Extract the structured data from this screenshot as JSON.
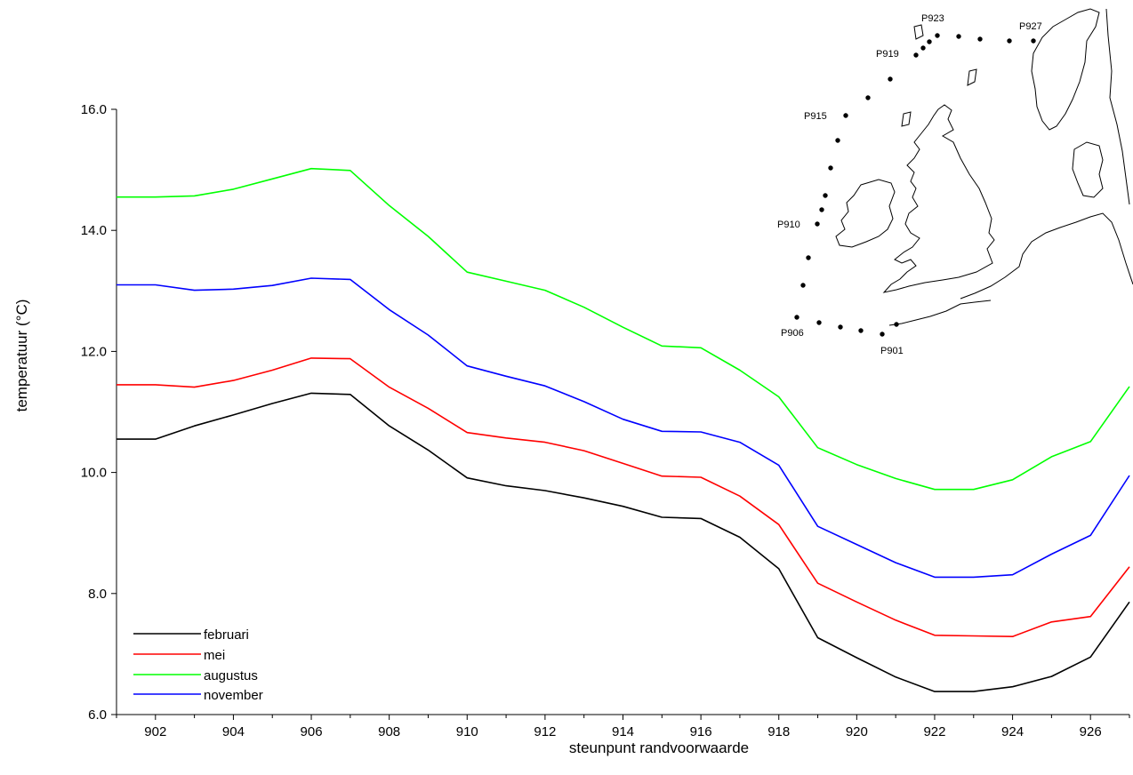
{
  "chart_data": {
    "type": "line",
    "title": "",
    "xlabel": "steunpunt randvoorwaarde",
    "ylabel": "temperatuur (°C)",
    "xlim": [
      901,
      927
    ],
    "ylim": [
      6.0,
      16.0
    ],
    "x_ticks": [
      "902",
      "904",
      "906",
      "908",
      "910",
      "912",
      "914",
      "916",
      "918",
      "920",
      "922",
      "924",
      "926"
    ],
    "y_ticks": [
      "6.0",
      "8.0",
      "10.0",
      "12.0",
      "14.0",
      "16.0"
    ],
    "grid": false,
    "legend_position": "bottom-left",
    "x": [
      901,
      902,
      903,
      904,
      905,
      906,
      907,
      908,
      909,
      910,
      911,
      912,
      913,
      914,
      915,
      916,
      917,
      918,
      919,
      920,
      921,
      922,
      923,
      924,
      925,
      926,
      927
    ],
    "series": [
      {
        "name": "februari",
        "color": "#000000",
        "values": [
          10.55,
          10.55,
          10.77,
          10.95,
          11.14,
          11.31,
          11.29,
          10.77,
          10.37,
          9.91,
          9.78,
          9.7,
          9.58,
          9.44,
          9.26,
          9.24,
          8.93,
          8.41,
          7.27,
          6.94,
          6.62,
          6.38,
          6.38,
          6.46,
          6.63,
          6.95,
          7.86
        ]
      },
      {
        "name": "mei",
        "color": "#ff0000",
        "values": [
          11.45,
          11.45,
          11.41,
          11.52,
          11.69,
          11.89,
          11.88,
          11.41,
          11.06,
          10.66,
          10.57,
          10.5,
          10.36,
          10.15,
          9.94,
          9.92,
          9.61,
          9.14,
          8.17,
          7.86,
          7.56,
          7.31,
          7.3,
          7.29,
          7.53,
          7.62,
          8.44
        ]
      },
      {
        "name": "augustus",
        "color": "#00ff00",
        "values": [
          14.55,
          14.55,
          14.57,
          14.68,
          14.85,
          15.02,
          14.99,
          14.41,
          13.9,
          13.31,
          13.16,
          13.01,
          12.73,
          12.4,
          12.09,
          12.06,
          11.69,
          11.25,
          10.41,
          10.13,
          9.9,
          9.72,
          9.72,
          9.88,
          10.26,
          10.51,
          11.42
        ]
      },
      {
        "name": "november",
        "color": "#0000ff",
        "values": [
          13.1,
          13.1,
          13.01,
          13.03,
          13.09,
          13.21,
          13.19,
          12.69,
          12.27,
          11.76,
          11.59,
          11.43,
          11.17,
          10.88,
          10.68,
          10.67,
          10.5,
          10.12,
          9.11,
          8.81,
          8.51,
          8.27,
          8.27,
          8.31,
          8.65,
          8.96,
          9.95
        ]
      }
    ],
    "inset_map": {
      "station_labels": [
        "P923",
        "P927",
        "P919",
        "P915",
        "P910",
        "P906",
        "P901"
      ]
    }
  }
}
